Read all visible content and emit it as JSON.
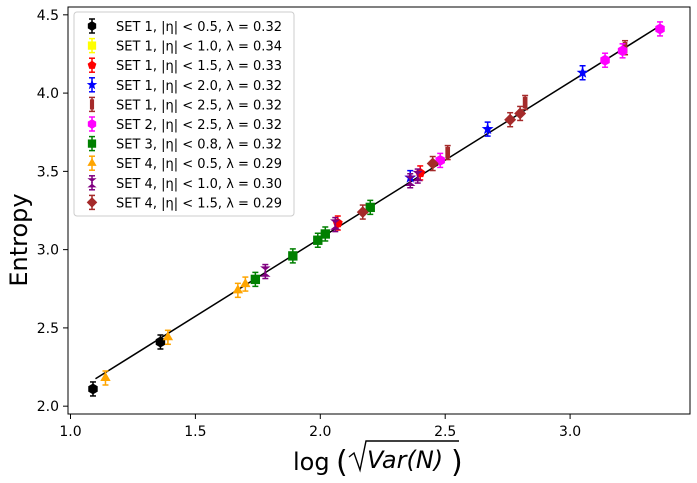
{
  "chart_data": {
    "type": "scatter",
    "title": "",
    "xlabel": "log(√Var(N))",
    "xlabel_parts": {
      "fn": "log",
      "arg": "Var(N)"
    },
    "ylabel": "Entropy",
    "xlim": [
      0.99,
      3.48
    ],
    "ylim": [
      1.95,
      4.55
    ],
    "xticks": [
      1.0,
      1.5,
      2.0,
      2.5,
      3.0
    ],
    "yticks": [
      2.0,
      2.5,
      3.0,
      3.5,
      4.0,
      4.5
    ],
    "xtick_labels": [
      "1.0",
      "1.5",
      "2.0",
      "2.5",
      "3.0"
    ],
    "ytick_labels": [
      "2.0",
      "2.5",
      "3.0",
      "3.5",
      "4.0",
      "4.5"
    ],
    "grid": false,
    "legend_position": "top-left",
    "fit_line": {
      "x": [
        1.1,
        3.36
      ],
      "y": [
        2.175,
        4.43
      ],
      "color": "#000000"
    },
    "series": [
      {
        "name": "SET 1, |η| < 0.5, λ = 0.32",
        "set": "SET 1",
        "eta": "|η| < 0.5",
        "lambda": "λ = 0.32",
        "color": "#000000",
        "marker": "hexagon",
        "x": [
          1.09,
          1.36
        ],
        "y": [
          2.11,
          2.41
        ]
      },
      {
        "name": "SET 1, |η| < 1.0, λ = 0.34",
        "set": "SET 1",
        "eta": "|η| < 1.0",
        "lambda": "λ = 0.34",
        "color": "#ffff00",
        "marker": "square",
        "x": [],
        "y": []
      },
      {
        "name": "SET 1, |η| < 1.5, λ = 0.33",
        "set": "SET 1",
        "eta": "|η| < 1.5",
        "lambda": "λ = 0.33",
        "color": "#ff0000",
        "marker": "pentagon",
        "x": [
          2.07,
          2.4
        ],
        "y": [
          3.17,
          3.49
        ]
      },
      {
        "name": "SET 1, |η| < 2.0, λ = 0.32",
        "set": "SET 1",
        "eta": "|η| < 2.0",
        "lambda": "λ = 0.32",
        "color": "#0000ff",
        "marker": "star",
        "x": [
          2.36,
          2.67,
          3.05
        ],
        "y": [
          3.46,
          3.77,
          4.13
        ]
      },
      {
        "name": "SET 1, |η| < 2.5, λ = 0.32",
        "set": "SET 1",
        "eta": "|η| < 2.5",
        "lambda": "λ = 0.32",
        "color": "#a52a2a",
        "marker": "thin_rect",
        "x": [
          2.51,
          2.82,
          3.22
        ],
        "y": [
          3.62,
          3.94,
          4.29
        ]
      },
      {
        "name": "SET 2, |η| < 2.5, λ = 0.32",
        "set": "SET 2",
        "eta": "|η| < 2.5",
        "lambda": "λ = 0.32",
        "color": "#ff00ff",
        "marker": "hexagon",
        "x": [
          2.48,
          3.14,
          3.21,
          3.36
        ],
        "y": [
          3.57,
          4.21,
          4.27,
          4.41
        ]
      },
      {
        "name": "SET 3, |η| < 0.8, λ = 0.32",
        "set": "SET 3",
        "eta": "|η| < 0.8",
        "lambda": "λ = 0.32",
        "color": "#008000",
        "marker": "square",
        "x": [
          1.74,
          1.89,
          1.99,
          2.02,
          2.2
        ],
        "y": [
          2.81,
          2.96,
          3.06,
          3.1,
          3.27
        ]
      },
      {
        "name": "SET 4, |η| < 0.5, λ = 0.29",
        "set": "SET 4",
        "eta": "|η| < 0.5",
        "lambda": "λ = 0.29",
        "color": "#ffa500",
        "marker": "triangle",
        "x": [
          1.14,
          1.39,
          1.67,
          1.7
        ],
        "y": [
          2.18,
          2.44,
          2.74,
          2.78
        ]
      },
      {
        "name": "SET 4, |η| < 1.0, λ = 0.30",
        "set": "SET 4",
        "eta": "|η| < 1.0",
        "lambda": "λ = 0.30",
        "color": "#800080",
        "marker": "hourglass",
        "x": [
          1.78,
          2.06,
          2.36,
          2.39
        ],
        "y": [
          2.86,
          3.16,
          3.44,
          3.47
        ]
      },
      {
        "name": "SET 4, |η| < 1.5, λ = 0.29",
        "set": "SET 4",
        "eta": "|η| < 1.5",
        "lambda": "λ = 0.29",
        "color": "#a52a2a",
        "marker": "diamond",
        "x": [
          2.17,
          2.45,
          2.76,
          2.8
        ],
        "y": [
          3.24,
          3.55,
          3.83,
          3.87
        ]
      }
    ]
  }
}
